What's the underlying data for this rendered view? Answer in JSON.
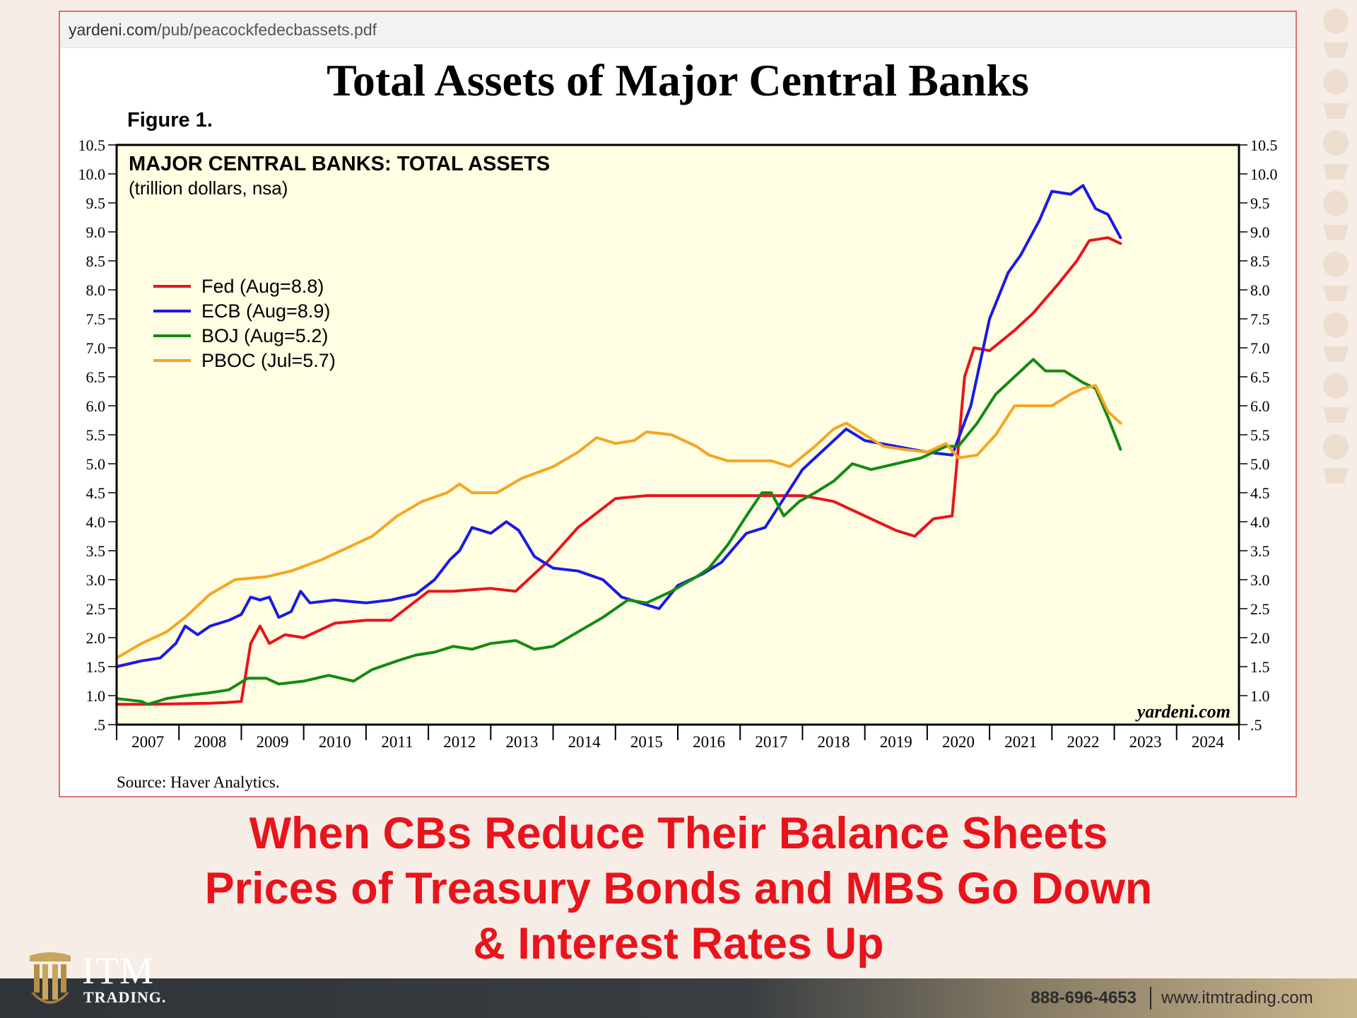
{
  "document": {
    "url_domain": "yardeni.com",
    "url_path": "/pub/peacockfedecbassets.pdf",
    "title": "Total Assets of Major Central Banks",
    "figure_label": "Figure 1.",
    "source": "Source: Haver Analytics."
  },
  "chart_data": {
    "type": "line",
    "title": "MAJOR CENTRAL BANKS: TOTAL ASSETS",
    "subtitle": "(trillion dollars, nsa)",
    "watermark": "yardeni.com",
    "xlim": [
      2006.5,
      2024.5
    ],
    "ylim": [
      0.5,
      10.5
    ],
    "y_ticks": [
      ".5",
      "1.0",
      "1.5",
      "2.0",
      "2.5",
      "3.0",
      "3.5",
      "4.0",
      "4.5",
      "5.0",
      "5.5",
      "6.0",
      "6.5",
      "7.0",
      "7.5",
      "8.0",
      "8.5",
      "9.0",
      "9.5",
      "10.0",
      "10.5"
    ],
    "x_tick_labels": [
      "2007",
      "2008",
      "2009",
      "2010",
      "2011",
      "2012",
      "2013",
      "2014",
      "2015",
      "2016",
      "2017",
      "2018",
      "2019",
      "2020",
      "2021",
      "2022",
      "2023",
      "2024"
    ],
    "grid": false,
    "legend_position": "upper-left",
    "background_color": "#fffde2",
    "series": [
      {
        "name": "Fed (Aug=8.8)",
        "color": "#e8141c",
        "points": [
          [
            2006.5,
            0.85
          ],
          [
            2007.0,
            0.85
          ],
          [
            2007.5,
            0.86
          ],
          [
            2008.0,
            0.87
          ],
          [
            2008.25,
            0.88
          ],
          [
            2008.5,
            0.9
          ],
          [
            2008.65,
            1.9
          ],
          [
            2008.8,
            2.2
          ],
          [
            2008.95,
            1.9
          ],
          [
            2009.2,
            2.05
          ],
          [
            2009.5,
            2.0
          ],
          [
            2010.0,
            2.25
          ],
          [
            2010.5,
            2.3
          ],
          [
            2010.9,
            2.3
          ],
          [
            2011.5,
            2.8
          ],
          [
            2011.9,
            2.8
          ],
          [
            2012.5,
            2.85
          ],
          [
            2012.9,
            2.8
          ],
          [
            2013.4,
            3.3
          ],
          [
            2013.9,
            3.9
          ],
          [
            2014.5,
            4.4
          ],
          [
            2015.0,
            4.45
          ],
          [
            2015.5,
            4.45
          ],
          [
            2016.0,
            4.45
          ],
          [
            2016.5,
            4.45
          ],
          [
            2017.0,
            4.45
          ],
          [
            2017.5,
            4.45
          ],
          [
            2018.0,
            4.35
          ],
          [
            2018.5,
            4.1
          ],
          [
            2019.0,
            3.85
          ],
          [
            2019.3,
            3.75
          ],
          [
            2019.6,
            4.05
          ],
          [
            2019.9,
            4.1
          ],
          [
            2020.1,
            6.5
          ],
          [
            2020.25,
            7.0
          ],
          [
            2020.5,
            6.95
          ],
          [
            2020.9,
            7.3
          ],
          [
            2021.2,
            7.6
          ],
          [
            2021.6,
            8.1
          ],
          [
            2021.9,
            8.5
          ],
          [
            2022.1,
            8.85
          ],
          [
            2022.4,
            8.9
          ],
          [
            2022.6,
            8.8
          ]
        ]
      },
      {
        "name": "ECB (Aug=8.9)",
        "color": "#1a1ae6",
        "points": [
          [
            2006.5,
            1.5
          ],
          [
            2006.9,
            1.6
          ],
          [
            2007.2,
            1.65
          ],
          [
            2007.45,
            1.9
          ],
          [
            2007.6,
            2.2
          ],
          [
            2007.8,
            2.05
          ],
          [
            2008.0,
            2.2
          ],
          [
            2008.3,
            2.3
          ],
          [
            2008.5,
            2.4
          ],
          [
            2008.65,
            2.7
          ],
          [
            2008.8,
            2.65
          ],
          [
            2008.95,
            2.7
          ],
          [
            2009.1,
            2.35
          ],
          [
            2009.3,
            2.45
          ],
          [
            2009.45,
            2.8
          ],
          [
            2009.6,
            2.6
          ],
          [
            2010.0,
            2.65
          ],
          [
            2010.5,
            2.6
          ],
          [
            2010.9,
            2.65
          ],
          [
            2011.3,
            2.75
          ],
          [
            2011.6,
            3.0
          ],
          [
            2011.85,
            3.35
          ],
          [
            2012.0,
            3.5
          ],
          [
            2012.2,
            3.9
          ],
          [
            2012.5,
            3.8
          ],
          [
            2012.75,
            4.0
          ],
          [
            2012.95,
            3.85
          ],
          [
            2013.2,
            3.4
          ],
          [
            2013.5,
            3.2
          ],
          [
            2013.9,
            3.15
          ],
          [
            2014.3,
            3.0
          ],
          [
            2014.6,
            2.7
          ],
          [
            2014.9,
            2.6
          ],
          [
            2015.2,
            2.5
          ],
          [
            2015.5,
            2.9
          ],
          [
            2015.9,
            3.1
          ],
          [
            2016.2,
            3.3
          ],
          [
            2016.6,
            3.8
          ],
          [
            2016.9,
            3.9
          ],
          [
            2017.2,
            4.4
          ],
          [
            2017.5,
            4.9
          ],
          [
            2017.8,
            5.2
          ],
          [
            2018.0,
            5.4
          ],
          [
            2018.2,
            5.6
          ],
          [
            2018.5,
            5.4
          ],
          [
            2019.0,
            5.3
          ],
          [
            2019.5,
            5.2
          ],
          [
            2019.9,
            5.15
          ],
          [
            2020.2,
            6.0
          ],
          [
            2020.5,
            7.5
          ],
          [
            2020.8,
            8.3
          ],
          [
            2021.0,
            8.6
          ],
          [
            2021.3,
            9.2
          ],
          [
            2021.5,
            9.7
          ],
          [
            2021.8,
            9.65
          ],
          [
            2022.0,
            9.8
          ],
          [
            2022.2,
            9.4
          ],
          [
            2022.4,
            9.3
          ],
          [
            2022.6,
            8.9
          ]
        ]
      },
      {
        "name": "BOJ (Aug=5.2)",
        "color": "#148a14",
        "points": [
          [
            2006.5,
            0.95
          ],
          [
            2006.9,
            0.9
          ],
          [
            2007.0,
            0.85
          ],
          [
            2007.3,
            0.95
          ],
          [
            2007.6,
            1.0
          ],
          [
            2008.0,
            1.05
          ],
          [
            2008.3,
            1.1
          ],
          [
            2008.6,
            1.3
          ],
          [
            2008.9,
            1.3
          ],
          [
            2009.1,
            1.2
          ],
          [
            2009.5,
            1.25
          ],
          [
            2009.9,
            1.35
          ],
          [
            2010.3,
            1.25
          ],
          [
            2010.6,
            1.45
          ],
          [
            2011.0,
            1.6
          ],
          [
            2011.3,
            1.7
          ],
          [
            2011.6,
            1.75
          ],
          [
            2011.9,
            1.85
          ],
          [
            2012.2,
            1.8
          ],
          [
            2012.5,
            1.9
          ],
          [
            2012.9,
            1.95
          ],
          [
            2013.2,
            1.8
          ],
          [
            2013.5,
            1.85
          ],
          [
            2013.9,
            2.1
          ],
          [
            2014.3,
            2.35
          ],
          [
            2014.7,
            2.65
          ],
          [
            2015.0,
            2.6
          ],
          [
            2015.4,
            2.8
          ],
          [
            2015.8,
            3.05
          ],
          [
            2016.0,
            3.2
          ],
          [
            2016.3,
            3.6
          ],
          [
            2016.6,
            4.1
          ],
          [
            2016.85,
            4.5
          ],
          [
            2017.0,
            4.5
          ],
          [
            2017.2,
            4.1
          ],
          [
            2017.45,
            4.35
          ],
          [
            2017.7,
            4.5
          ],
          [
            2018.0,
            4.7
          ],
          [
            2018.3,
            5.0
          ],
          [
            2018.6,
            4.9
          ],
          [
            2019.0,
            5.0
          ],
          [
            2019.4,
            5.1
          ],
          [
            2019.8,
            5.3
          ],
          [
            2020.0,
            5.3
          ],
          [
            2020.3,
            5.7
          ],
          [
            2020.6,
            6.2
          ],
          [
            2020.9,
            6.5
          ],
          [
            2021.2,
            6.8
          ],
          [
            2021.4,
            6.6
          ],
          [
            2021.7,
            6.6
          ],
          [
            2022.0,
            6.4
          ],
          [
            2022.2,
            6.3
          ],
          [
            2022.4,
            5.8
          ],
          [
            2022.6,
            5.25
          ]
        ]
      },
      {
        "name": "PBOC (Jul=5.7)",
        "color": "#f5a623",
        "points": [
          [
            2006.5,
            1.65
          ],
          [
            2006.9,
            1.9
          ],
          [
            2007.3,
            2.1
          ],
          [
            2007.6,
            2.35
          ],
          [
            2008.0,
            2.75
          ],
          [
            2008.4,
            3.0
          ],
          [
            2008.9,
            3.05
          ],
          [
            2009.3,
            3.15
          ],
          [
            2009.8,
            3.35
          ],
          [
            2010.2,
            3.55
          ],
          [
            2010.6,
            3.75
          ],
          [
            2011.0,
            4.1
          ],
          [
            2011.4,
            4.35
          ],
          [
            2011.8,
            4.5
          ],
          [
            2012.0,
            4.65
          ],
          [
            2012.2,
            4.5
          ],
          [
            2012.6,
            4.5
          ],
          [
            2013.0,
            4.75
          ],
          [
            2013.5,
            4.95
          ],
          [
            2013.9,
            5.2
          ],
          [
            2014.2,
            5.45
          ],
          [
            2014.5,
            5.35
          ],
          [
            2014.8,
            5.4
          ],
          [
            2015.0,
            5.55
          ],
          [
            2015.4,
            5.5
          ],
          [
            2015.8,
            5.3
          ],
          [
            2016.0,
            5.15
          ],
          [
            2016.3,
            5.05
          ],
          [
            2016.7,
            5.05
          ],
          [
            2017.0,
            5.05
          ],
          [
            2017.3,
            4.95
          ],
          [
            2017.7,
            5.3
          ],
          [
            2018.0,
            5.6
          ],
          [
            2018.2,
            5.7
          ],
          [
            2018.5,
            5.5
          ],
          [
            2018.8,
            5.3
          ],
          [
            2019.1,
            5.25
          ],
          [
            2019.5,
            5.2
          ],
          [
            2019.8,
            5.35
          ],
          [
            2020.0,
            5.1
          ],
          [
            2020.3,
            5.15
          ],
          [
            2020.6,
            5.5
          ],
          [
            2020.9,
            6.0
          ],
          [
            2021.2,
            6.0
          ],
          [
            2021.5,
            6.0
          ],
          [
            2021.8,
            6.2
          ],
          [
            2022.0,
            6.3
          ],
          [
            2022.2,
            6.35
          ],
          [
            2022.4,
            5.9
          ],
          [
            2022.6,
            5.7
          ]
        ]
      }
    ]
  },
  "caption": {
    "line1": "When CBs Reduce Their Balance Sheets",
    "line2": "Prices of Treasury Bonds and MBS Go Down",
    "line3": "& Interest Rates Up"
  },
  "footer": {
    "logo_text": "ITM",
    "logo_subtext": "TRADING.",
    "phone": "888-696-4653",
    "website": "www.itmtrading.com"
  },
  "colors": {
    "caption": "#e8141c",
    "background": "#f6ede6",
    "footer_gold": "#c9b68c"
  }
}
